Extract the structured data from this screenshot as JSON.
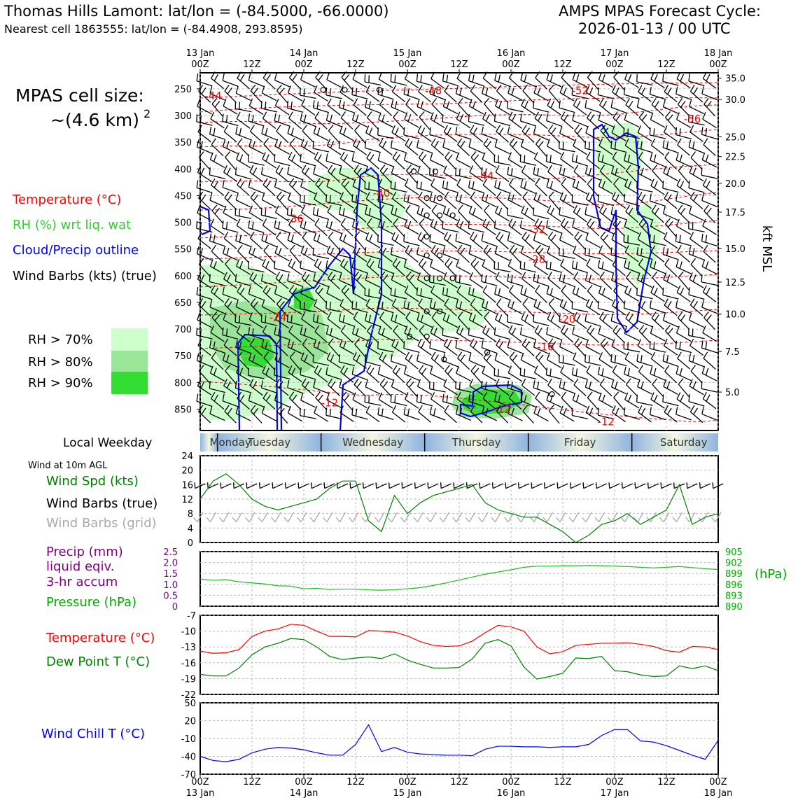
{
  "header": {
    "station_title": "Thomas Hills Lamont: lat/lon = (-84.5000, -66.0000)",
    "nearest_cell": "Nearest cell 1863555: lat/lon = (-84.4908, 293.8595)",
    "product": "AMPS MPAS Forecast Cycle:",
    "cycle": "2026-01-13 / 00 UTC"
  },
  "colors": {
    "temperature": "#ff0000",
    "rh": "#33cc33",
    "cloud": "#0000ff",
    "precip": "#800080",
    "pressure": "#00aa00",
    "dewpoint": "#008000",
    "windchill": "#0000ff",
    "rh70": "#ccffcc",
    "rh80": "#99e699",
    "rh90": "#33dd33",
    "grid_barb": "#aaaaaa"
  },
  "left_legend": {
    "cell_size_label": "MPAS cell size:",
    "cell_size_value": "~(4.6 km)",
    "cell_size_exp": "2",
    "temperature": "Temperature (°C)",
    "rh": "RH (%) wrt liq. wat",
    "cloud": "Cloud/Precip outline",
    "barbs": "Wind Barbs (kts) (true)",
    "rh70": "RH > 70%",
    "rh80": "RH > 80%",
    "rh90": "RH > 90%"
  },
  "time_axis": {
    "top_labels": [
      {
        "hour": 0,
        "l1": "13 Jan",
        "l2": "00Z"
      },
      {
        "hour": 12,
        "l1": "",
        "l2": "12Z"
      },
      {
        "hour": 24,
        "l1": "14 Jan",
        "l2": "00Z"
      },
      {
        "hour": 36,
        "l1": "",
        "l2": "12Z"
      },
      {
        "hour": 48,
        "l1": "15 Jan",
        "l2": "00Z"
      },
      {
        "hour": 60,
        "l1": "",
        "l2": "12Z"
      },
      {
        "hour": 72,
        "l1": "16 Jan",
        "l2": "00Z"
      },
      {
        "hour": 84,
        "l1": "",
        "l2": "12Z"
      },
      {
        "hour": 96,
        "l1": "17 Jan",
        "l2": "00Z"
      },
      {
        "hour": 108,
        "l1": "",
        "l2": "12Z"
      },
      {
        "hour": 120,
        "l1": "18 Jan",
        "l2": "00Z"
      }
    ]
  },
  "weekday_bar": {
    "label": "Local Weekday",
    "days": [
      {
        "name": "Monday",
        "center_hour": 7
      },
      {
        "name": "Tuesday",
        "center_hour": 16
      },
      {
        "name": "Wednesday",
        "center_hour": 40
      },
      {
        "name": "Thursday",
        "center_hour": 64
      },
      {
        "name": "Friday",
        "center_hour": 88
      },
      {
        "name": "Saturday",
        "center_hour": 112
      }
    ],
    "boundaries_hours": [
      4,
      28,
      52,
      76,
      100
    ]
  },
  "panel_labels": {
    "wind10m_title": "Wind at 10m AGL",
    "wind_speed": "Wind Spd (kts)",
    "barbs_true": "Wind Barbs (true)",
    "barbs_grid": "Wind Barbs (grid)",
    "precip_l1": "Precip (mm)",
    "precip_l2": "liquid eqiv.",
    "precip_l3": "3-hr accum",
    "pressure": "Pressure (hPa)",
    "pressure_unit": "(hPa)",
    "temperature": "Temperature (°C)",
    "dewpoint": "Dew Point T (°C)",
    "windchill": "Wind Chill T (°C)",
    "kft": "kft MSL"
  },
  "chart_data": [
    {
      "type": "heatmap",
      "description_key": "time-height cross section",
      "x_hours": [
        0,
        120
      ],
      "y_pressure_levels_hPa": [
        250,
        300,
        350,
        400,
        450,
        500,
        550,
        600,
        650,
        700,
        750,
        800,
        850
      ],
      "y_range_hPa": [
        890,
        220
      ],
      "height_ticks_kft": [
        35.0,
        30.0,
        25.0,
        22.5,
        20.0,
        17.5,
        15.0,
        12.5,
        10.0,
        7.5,
        5.0
      ],
      "height_tick_pressures_hPa": [
        230,
        270,
        340,
        377,
        427,
        481,
        549,
        612,
        672,
        742,
        818
      ],
      "temperature_contour_labels": [
        {
          "value": "-44",
          "hour": 3,
          "p": 270
        },
        {
          "value": "-48",
          "hour": 54,
          "p": 260
        },
        {
          "value": "-52",
          "hour": 88,
          "p": 260
        },
        {
          "value": "-56",
          "hour": 114,
          "p": 313
        },
        {
          "value": "-44",
          "hour": 66,
          "p": 420
        },
        {
          "value": "-40",
          "hour": 42,
          "p": 452
        },
        {
          "value": "-36",
          "hour": 22,
          "p": 500
        },
        {
          "value": "-32",
          "hour": 78,
          "p": 520
        },
        {
          "value": "-28",
          "hour": 78,
          "p": 576
        },
        {
          "value": "-24",
          "hour": 18,
          "p": 685
        },
        {
          "value": "-20",
          "hour": 85,
          "p": 688
        },
        {
          "value": "-16",
          "hour": 80,
          "p": 740
        },
        {
          "value": "-12",
          "hour": 30,
          "p": 845
        },
        {
          "value": "-12",
          "hour": 70,
          "p": 857
        },
        {
          "value": "-12",
          "hour": 94,
          "p": 880
        }
      ],
      "cloud_outline": "present"
    },
    {
      "type": "line",
      "title": "Wind Spd (kts)",
      "ylim": [
        0,
        24
      ],
      "yticks": [
        0,
        4,
        8,
        12,
        16,
        20,
        24
      ],
      "x_hours": [
        0,
        3,
        6,
        9,
        12,
        15,
        18,
        21,
        24,
        27,
        30,
        33,
        36,
        39,
        42,
        45,
        48,
        51,
        54,
        57,
        60,
        63,
        66,
        69,
        72,
        75,
        78,
        81,
        84,
        87,
        90,
        93,
        96,
        99,
        102,
        105,
        108,
        111,
        114,
        117,
        120
      ],
      "series": [
        {
          "name": "Wind Spd (kts)",
          "values": [
            12,
            17,
            19,
            16,
            12,
            10,
            9,
            10,
            11,
            12,
            15,
            17,
            17,
            6,
            3,
            13,
            8,
            11,
            13,
            14,
            15,
            16,
            11,
            9,
            8,
            7,
            7,
            5,
            3,
            0,
            2,
            5,
            6,
            8,
            5,
            7,
            9,
            16,
            5,
            7,
            8
          ]
        }
      ]
    },
    {
      "type": "line",
      "title": "Pressure (hPa)",
      "ylim": [
        890,
        905
      ],
      "yticks_right": [
        890,
        893,
        896,
        899,
        902,
        905
      ],
      "precip_ylim": [
        0,
        2.5
      ],
      "precip_yticks": [
        0,
        0.5,
        1.0,
        1.5,
        2.0,
        2.5
      ],
      "x_hours": [
        0,
        3,
        6,
        9,
        12,
        15,
        18,
        21,
        24,
        27,
        30,
        33,
        36,
        39,
        42,
        45,
        48,
        51,
        54,
        57,
        60,
        63,
        66,
        69,
        72,
        75,
        78,
        81,
        84,
        87,
        90,
        93,
        96,
        99,
        102,
        105,
        108,
        111,
        114,
        117,
        120
      ],
      "series": [
        {
          "name": "Pressure (hPa)",
          "values": [
            897.5,
            897.1,
            897.3,
            896.7,
            896.4,
            896.1,
            895.6,
            895.5,
            894.8,
            894.9,
            894.6,
            894.7,
            894.7,
            894.5,
            894.4,
            894.5,
            894.8,
            895.1,
            895.7,
            896.4,
            897.2,
            898.0,
            898.8,
            899.4,
            900.0,
            900.7,
            901.0,
            901.0,
            901.1,
            901.1,
            901.2,
            901.1,
            901.0,
            900.9,
            900.7,
            900.5,
            900.7,
            900.9,
            900.6,
            900.3,
            900.1
          ]
        }
      ]
    },
    {
      "type": "line",
      "title": "Temperature (°C)",
      "ylim": [
        -22,
        -7
      ],
      "yticks": [
        -22,
        -19,
        -16,
        -13,
        -10,
        -7
      ],
      "x_hours": [
        0,
        3,
        6,
        9,
        12,
        15,
        18,
        21,
        24,
        27,
        30,
        33,
        36,
        39,
        42,
        45,
        48,
        51,
        54,
        57,
        60,
        63,
        66,
        69,
        72,
        75,
        78,
        81,
        84,
        87,
        90,
        93,
        96,
        99,
        102,
        105,
        108,
        111,
        114,
        117,
        120
      ],
      "series": [
        {
          "name": "Temperature (°C)",
          "values": [
            -13.8,
            -14.2,
            -14.1,
            -13.5,
            -11.0,
            -10.0,
            -9.6,
            -8.7,
            -8.9,
            -10.0,
            -11.0,
            -11.0,
            -11.1,
            -9.9,
            -10.0,
            -10.2,
            -10.9,
            -12.0,
            -12.7,
            -12.9,
            -12.8,
            -11.9,
            -10.3,
            -8.9,
            -9.2,
            -10.0,
            -13.0,
            -14.3,
            -13.9,
            -12.7,
            -12.5,
            -12.3,
            -12.3,
            -12.2,
            -12.5,
            -12.9,
            -13.7,
            -14.0,
            -12.9,
            -13.0,
            -13.5
          ]
        },
        {
          "name": "Dew Point T (°C)",
          "values": [
            -18.2,
            -18.5,
            -18.5,
            -17.0,
            -14.5,
            -13.0,
            -12.3,
            -11.4,
            -11.6,
            -13.0,
            -14.8,
            -15.4,
            -15.1,
            -14.9,
            -15.2,
            -14.3,
            -15.5,
            -16.3,
            -17.0,
            -17.0,
            -16.9,
            -15.3,
            -12.3,
            -11.6,
            -12.8,
            -16.8,
            -19.1,
            -18.6,
            -18.0,
            -15.1,
            -15.2,
            -14.8,
            -17.5,
            -17.7,
            -18.3,
            -18.6,
            -18.5,
            -16.6,
            -17.1,
            -16.6,
            -17.5
          ]
        }
      ]
    },
    {
      "type": "line",
      "title": "Wind Chill T (°C)",
      "ylim": [
        -70,
        50
      ],
      "yticks": [
        -70,
        -40,
        -10,
        20,
        50
      ],
      "x_hours": [
        0,
        3,
        6,
        9,
        12,
        15,
        18,
        21,
        24,
        27,
        30,
        33,
        36,
        39,
        42,
        45,
        48,
        51,
        54,
        57,
        60,
        63,
        66,
        69,
        72,
        75,
        78,
        81,
        84,
        87,
        90,
        93,
        96,
        99,
        102,
        105,
        108,
        111,
        114,
        117,
        120
      ],
      "series": [
        {
          "name": "Wind Chill T (°C)",
          "values": [
            -40,
            -47,
            -49,
            -45,
            -34,
            -28,
            -25,
            -26,
            -29,
            -34,
            -38,
            -38,
            -20,
            13,
            -32,
            -25,
            -33,
            -36,
            -37,
            -38,
            -38,
            -39,
            -28,
            -23,
            -23,
            -24,
            -24,
            -25,
            -24,
            -24,
            -20,
            -5,
            5,
            5,
            -14,
            -16,
            -22,
            -30,
            -38,
            -45,
            -13
          ]
        }
      ]
    }
  ]
}
